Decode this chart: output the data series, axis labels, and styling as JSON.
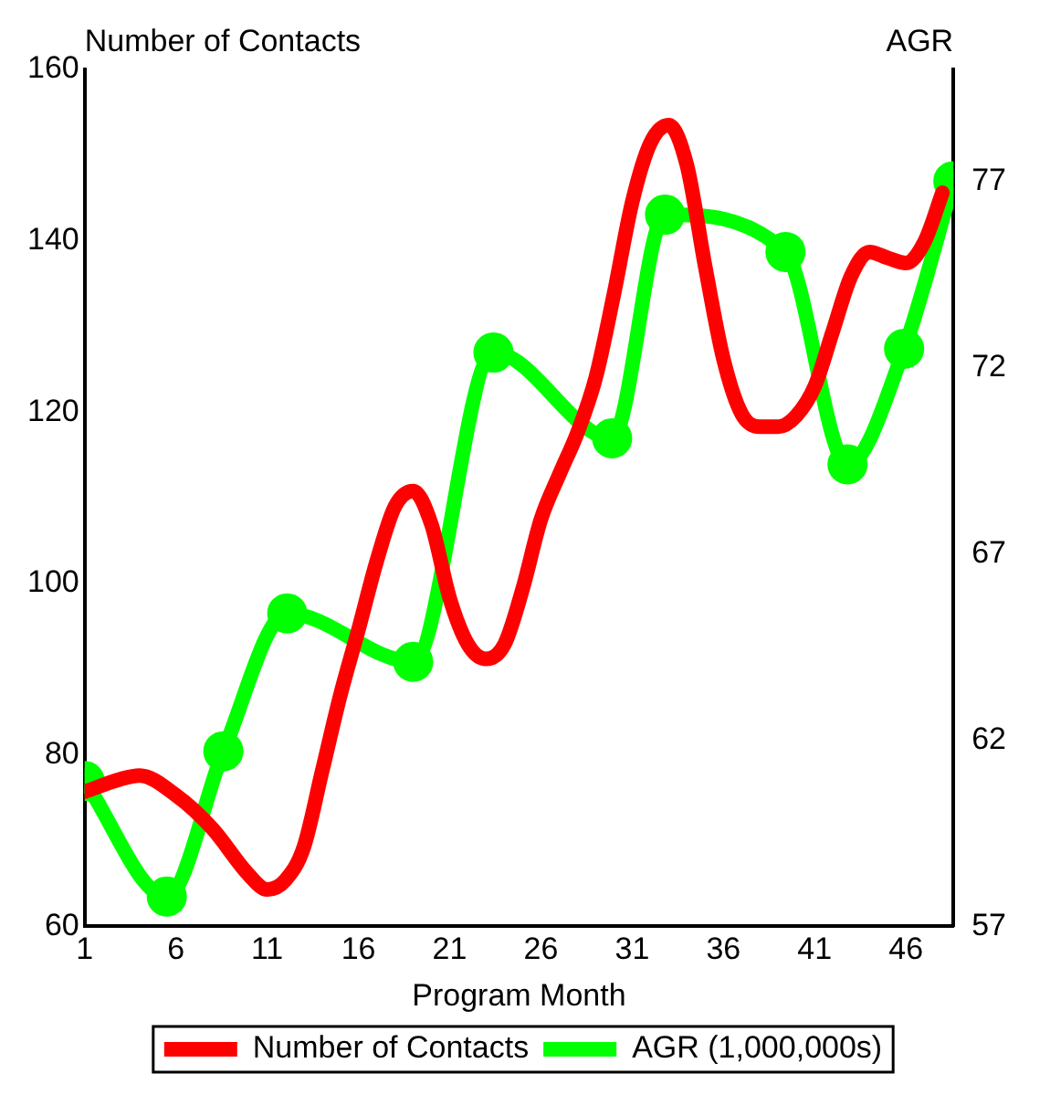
{
  "chart_data": {
    "type": "line",
    "xlabel": "Program Month",
    "ylabel": "Number of Contacts",
    "y2label": "AGR",
    "xlim": [
      1,
      48.6
    ],
    "xticks": [
      1,
      6,
      11,
      16,
      21,
      26,
      31,
      36,
      41,
      46
    ],
    "ylim": [
      60,
      160
    ],
    "yticks": [
      60,
      80,
      100,
      120,
      140,
      160
    ],
    "y2lim": [
      57,
      80
    ],
    "y2ticks": [
      57,
      62,
      67,
      72,
      77
    ],
    "grid": false,
    "legend": "bottom",
    "line_style": "solid",
    "series": [
      {
        "name": "Number of Contacts",
        "color": "#ff0000",
        "marker": "none",
        "x": [
          1,
          3,
          4,
          6,
          8,
          10,
          11,
          12,
          13,
          14,
          15,
          16,
          17,
          18,
          19,
          20,
          21,
          22,
          23,
          24,
          25,
          26,
          27,
          28,
          29,
          30,
          31,
          32,
          33,
          34,
          35,
          36,
          37,
          38,
          39,
          40,
          41,
          42,
          43,
          44,
          45,
          46,
          47,
          48
        ],
        "values": [
          75.7,
          77.2,
          77.6,
          75.3,
          71.4,
          66,
          64.3,
          65.4,
          69.2,
          78,
          86.9,
          94.6,
          102.6,
          109,
          110.8,
          106.9,
          98.3,
          92.9,
          91.2,
          92.9,
          99.4,
          107.5,
          112.7,
          117.6,
          124,
          133.8,
          144.5,
          151.4,
          153.5,
          148.8,
          137,
          126.2,
          119.8,
          118.3,
          118.3,
          119.6,
          123,
          129.5,
          135.9,
          138.7,
          138,
          137.4,
          139.8,
          145.6
        ]
      },
      {
        "name": "AGR (1,000,000s)",
        "color": "#00ff00",
        "marker": "circle",
        "axis": "y2",
        "x": [
          1,
          5.5,
          8.6,
          12.1,
          19,
          23.4,
          29.9,
          32.8,
          39.4,
          42.8,
          45.9,
          48.6
        ],
        "values": [
          60.9,
          57.8,
          61.7,
          65.4,
          64.1,
          72.4,
          70.1,
          76.1,
          75.1,
          69.4,
          72.5,
          77
        ]
      }
    ]
  }
}
